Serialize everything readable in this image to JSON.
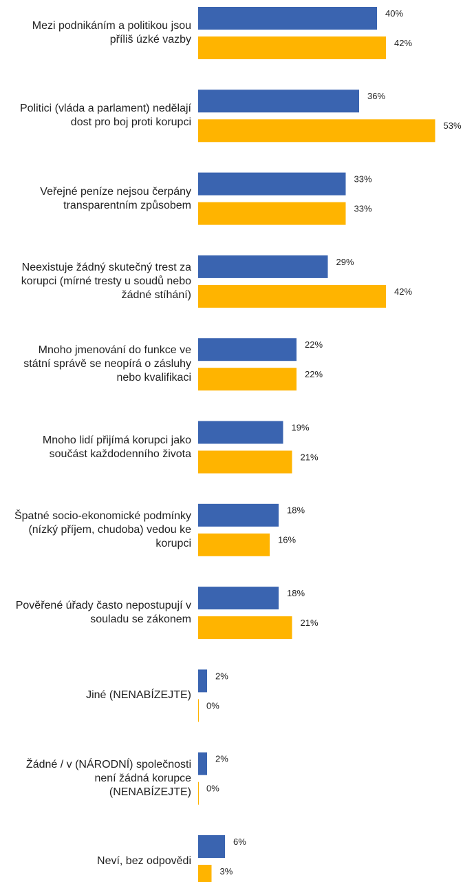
{
  "chart_data": {
    "type": "hbar",
    "categories": [
      "Mezi podnikáním a politikou jsou příliš úzké vazby",
      "Politici (vláda a parlament) nedělají dost pro boj proti korupci",
      "Veřejné peníze nejsou čerpány transparentním způsobem",
      "Neexistuje žádný skutečný trest za korupci (mírné tresty u soudů nebo žádné stíhání)",
      "Mnoho jmenování do funkce ve státní správě se neopírá o zásluhy nebo kvalifikaci",
      "Mnoho lidí přijímá korupci jako součást každodenního života",
      "Špatné socio-ekonomické podmínky (nízký příjem, chudoba) vedou ke korupci",
      "Pověřené úřady často nepostupují v souladu se zákonem",
      "Jiné (NENABÍZEJTE)",
      "Žádné / v (NÁRODNÍ) společnosti není žádná korupce (NENABÍZEJTE)",
      "Neví, bez odpovědi"
    ],
    "series": [
      {
        "color": "#3a64b0",
        "values": [
          40,
          36,
          33,
          29,
          22,
          19,
          18,
          18,
          2,
          2,
          6
        ],
        "value_labels": [
          "40%",
          "36%",
          "33%",
          "29%",
          "22%",
          "19%",
          "18%",
          "18%",
          "2%",
          "2%",
          "6%"
        ]
      },
      {
        "color": "#ffb400",
        "values": [
          42,
          53,
          33,
          42,
          22,
          21,
          16,
          21,
          0,
          0,
          3
        ],
        "value_labels": [
          "42%",
          "53%",
          "33%",
          "42%",
          "22%",
          "21%",
          "16%",
          "21%",
          "0%",
          "0%",
          "3%"
        ]
      }
    ]
  }
}
